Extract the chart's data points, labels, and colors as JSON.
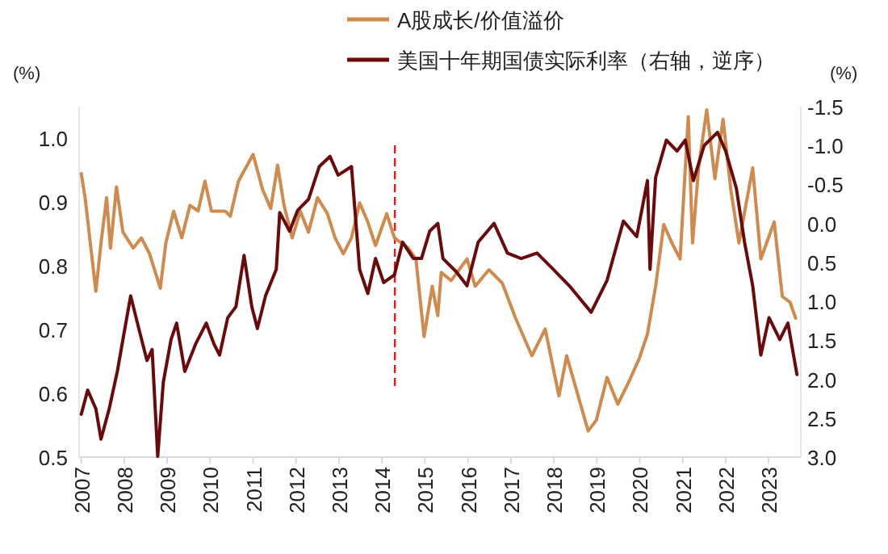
{
  "chart_data": {
    "type": "line",
    "ylabel": "(%)",
    "y2label": "(%)",
    "legend": "top",
    "grid": false,
    "line_style": "solid",
    "marker": "none",
    "xlim": [
      2006.95,
      2023.75
    ],
    "xticks": [
      2007,
      2008,
      2009,
      2010,
      2011,
      2012,
      2013,
      2014,
      2015,
      2016,
      2017,
      2018,
      2019,
      2020,
      2021,
      2022,
      2023
    ],
    "ylim": [
      0.5,
      1.05
    ],
    "yticks": [
      {
        "value": 0.5,
        "label": "0.5"
      },
      {
        "value": 0.6,
        "label": "0.6"
      },
      {
        "value": 0.7,
        "label": "0.7"
      },
      {
        "value": 0.8,
        "label": "0.8"
      },
      {
        "value": 0.9,
        "label": "0.9"
      },
      {
        "value": 1.0,
        "label": "1.0"
      }
    ],
    "y2lim": [
      3.0,
      -1.5
    ],
    "y2ticks": [
      {
        "value": -1.5,
        "label": "-1.5"
      },
      {
        "value": -1.0,
        "label": "-1.0"
      },
      {
        "value": -0.5,
        "label": "-0.5"
      },
      {
        "value": 0,
        "label": "0.0"
      },
      {
        "value": 0.5,
        "label": "0.5"
      },
      {
        "value": 1.0,
        "label": "1.0"
      },
      {
        "value": 1.5,
        "label": "1.5"
      },
      {
        "value": 2.0,
        "label": "2.0"
      },
      {
        "value": 2.5,
        "label": "2.5"
      },
      {
        "value": 3.0,
        "label": "3.0"
      }
    ],
    "ref_lines": [
      {
        "axis": "x",
        "value": 2014.3,
        "color": "#e8191e",
        "line_style": "dashed"
      }
    ],
    "series": [
      {
        "name": "A股成长/价值溢价",
        "color": "#d08a4d",
        "x": [
          2007.0,
          2007.09,
          2007.21,
          2007.34,
          2007.46,
          2007.59,
          2007.68,
          2007.82,
          2007.97,
          2008.21,
          2008.4,
          2008.59,
          2008.84,
          2008.97,
          2009.15,
          2009.34,
          2009.53,
          2009.72,
          2009.88,
          2010.03,
          2010.35,
          2010.47,
          2010.66,
          2011.0,
          2011.22,
          2011.41,
          2011.57,
          2011.72,
          2011.91,
          2012.1,
          2012.29,
          2012.5,
          2012.73,
          2012.91,
          2013.1,
          2013.29,
          2013.48,
          2013.67,
          2013.85,
          2014.11,
          2014.29,
          2014.61,
          2014.79,
          2014.98,
          2015.17,
          2015.3,
          2015.38,
          2015.61,
          2015.98,
          2016.17,
          2016.49,
          2016.8,
          2017.11,
          2017.49,
          2017.8,
          2018.12,
          2018.3,
          2018.55,
          2018.8,
          2018.99,
          2019.24,
          2019.49,
          2019.74,
          2019.99,
          2020.18,
          2020.37,
          2020.56,
          2020.75,
          2020.94,
          2021.13,
          2021.23,
          2021.37,
          2021.56,
          2021.75,
          2021.94,
          2022.12,
          2022.31,
          2022.63,
          2022.82,
          2023.13,
          2023.32,
          2023.5,
          2023.63
        ],
        "values": [
          0.945,
          0.907,
          0.836,
          0.76,
          0.836,
          0.907,
          0.828,
          0.924,
          0.853,
          0.828,
          0.844,
          0.819,
          0.765,
          0.836,
          0.886,
          0.844,
          0.895,
          0.886,
          0.933,
          0.886,
          0.886,
          0.878,
          0.933,
          0.975,
          0.92,
          0.89,
          0.958,
          0.895,
          0.844,
          0.886,
          0.853,
          0.907,
          0.882,
          0.844,
          0.819,
          0.844,
          0.899,
          0.869,
          0.832,
          0.882,
          0.844,
          0.828,
          0.811,
          0.689,
          0.768,
          0.722,
          0.79,
          0.777,
          0.811,
          0.768,
          0.794,
          0.773,
          0.718,
          0.659,
          0.701,
          0.596,
          0.659,
          0.6,
          0.541,
          0.558,
          0.625,
          0.583,
          0.617,
          0.655,
          0.693,
          0.768,
          0.865,
          0.836,
          0.811,
          1.034,
          0.836,
          0.954,
          1.045,
          0.937,
          1.03,
          0.92,
          0.836,
          0.954,
          0.811,
          0.869,
          0.752,
          0.743,
          0.718
        ]
      },
      {
        "name": "美国十年期国债实际利率（右轴，逆序）",
        "color": "#6b0a0a",
        "axis": "y2",
        "x": [
          2007.0,
          2007.15,
          2007.34,
          2007.46,
          2007.65,
          2007.84,
          2007.97,
          2008.15,
          2008.34,
          2008.53,
          2008.65,
          2008.78,
          2008.91,
          2009.09,
          2009.22,
          2009.41,
          2009.66,
          2009.91,
          2010.09,
          2010.22,
          2010.41,
          2010.6,
          2010.79,
          2010.97,
          2011.1,
          2011.29,
          2011.54,
          2011.62,
          2011.85,
          2012.04,
          2012.29,
          2012.54,
          2012.79,
          2012.98,
          2013.29,
          2013.48,
          2013.67,
          2013.85,
          2014.04,
          2014.29,
          2014.48,
          2014.73,
          2014.92,
          2015.11,
          2015.3,
          2015.42,
          2015.73,
          2015.98,
          2016.24,
          2016.61,
          2016.92,
          2017.24,
          2017.61,
          2017.99,
          2018.36,
          2018.87,
          2019.24,
          2019.62,
          2019.93,
          2020.18,
          2020.24,
          2020.37,
          2020.62,
          2020.87,
          2021.06,
          2021.25,
          2021.5,
          2021.81,
          2022.0,
          2022.25,
          2022.44,
          2022.63,
          2022.82,
          2023.01,
          2023.26,
          2023.45,
          2023.66
        ],
        "values": [
          2.45,
          2.14,
          2.38,
          2.77,
          2.38,
          1.9,
          1.49,
          0.93,
          1.35,
          1.76,
          1.62,
          2.99,
          2.04,
          1.49,
          1.28,
          1.9,
          1.55,
          1.28,
          1.55,
          1.69,
          1.21,
          1.07,
          0.41,
          1.07,
          1.35,
          0.93,
          0.59,
          -0.14,
          0.1,
          -0.17,
          -0.31,
          -0.73,
          -0.86,
          -0.62,
          -0.73,
          0.59,
          0.9,
          0.45,
          0.76,
          0.66,
          0.24,
          0.45,
          0.45,
          0.1,
          0.0,
          0.45,
          0.62,
          0.8,
          0.24,
          0.0,
          0.38,
          0.45,
          0.38,
          0.59,
          0.8,
          1.14,
          0.73,
          -0.03,
          0.17,
          -0.55,
          0.59,
          -0.59,
          -1.07,
          -0.93,
          -1.07,
          -0.55,
          -1.0,
          -1.17,
          -0.93,
          -0.45,
          0.24,
          0.8,
          1.69,
          1.21,
          1.49,
          1.28,
          1.94
        ]
      }
    ]
  }
}
